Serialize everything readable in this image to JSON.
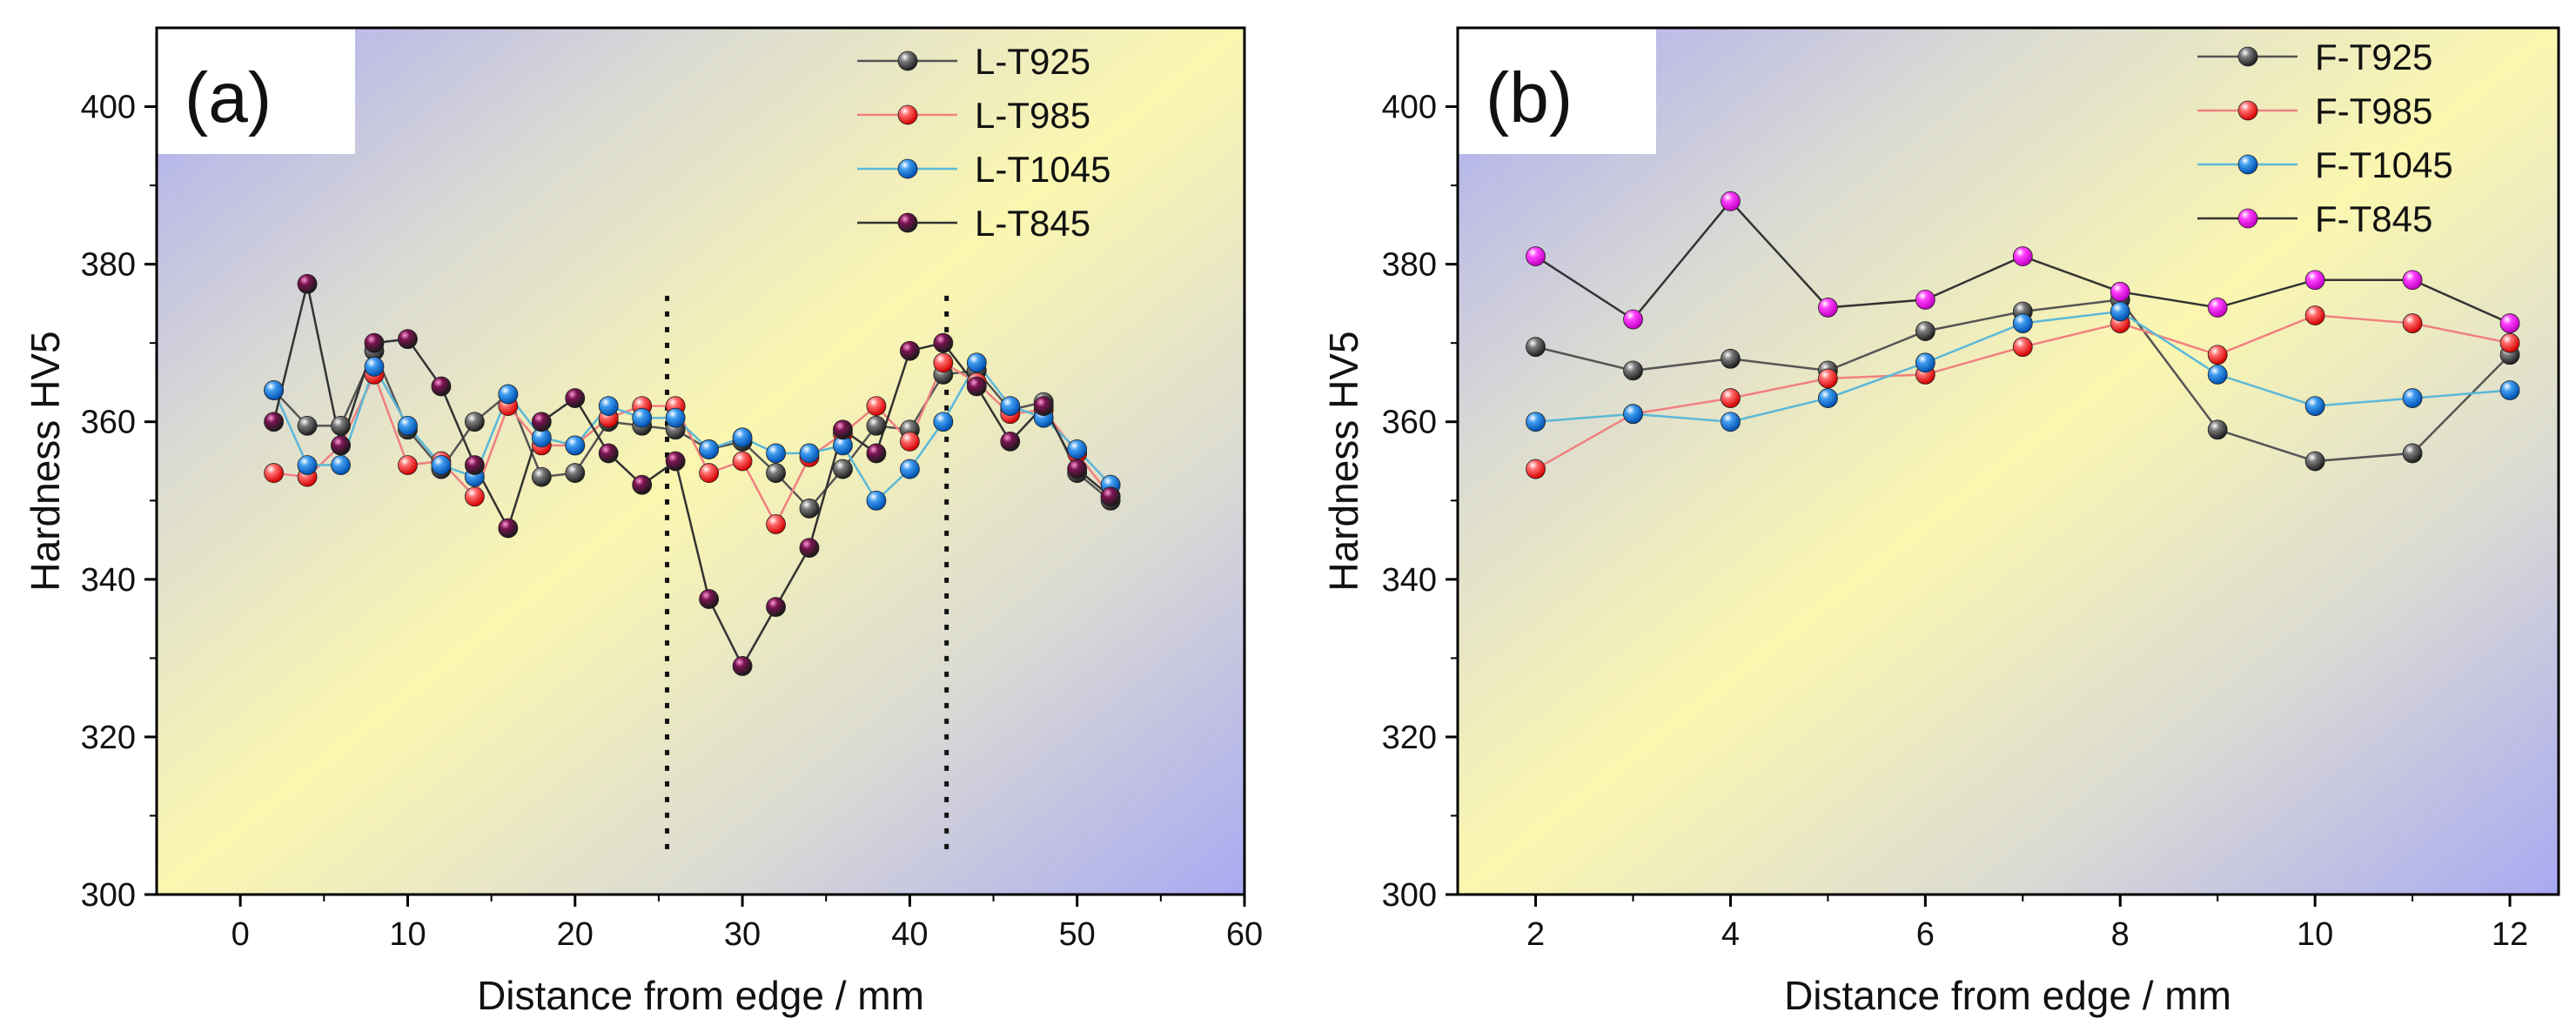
{
  "chart_data": [
    {
      "type": "line",
      "panel_label": "(a)",
      "xlabel": "Distance from edge / mm",
      "ylabel": "Hardness HV5",
      "xlim": [
        -5,
        60
      ],
      "ylim": [
        300,
        410
      ],
      "xticks": [
        "0",
        "10",
        "20",
        "30",
        "40",
        "50",
        "60"
      ],
      "xtick_values": [
        0,
        10,
        20,
        30,
        40,
        50,
        60
      ],
      "yticks": [
        "300",
        "320",
        "340",
        "360",
        "380",
        "400"
      ],
      "ytick_values": [
        300,
        320,
        340,
        360,
        380,
        400
      ],
      "legend_position": "top-right",
      "dotted_verticals": [
        25.5,
        42.2
      ],
      "x": [
        2,
        4,
        6,
        8,
        10,
        12,
        14,
        16,
        18,
        20,
        22,
        24,
        26,
        28,
        30,
        32,
        34,
        36,
        38,
        40,
        42,
        44,
        46,
        48,
        50,
        52
      ],
      "series": [
        {
          "name": "L-T925",
          "color": "#4a4a4a",
          "line_color": "#555555",
          "values": [
            364,
            359.5,
            359.5,
            369,
            359,
            354,
            360,
            363.5,
            353,
            353.5,
            360,
            359.5,
            359,
            356.5,
            357.5,
            353.5,
            349,
            354,
            359.5,
            359,
            366,
            366.5,
            361.5,
            362.5,
            353.5,
            350
          ]
        },
        {
          "name": "L-T985",
          "color": "#ff3b3b",
          "line_color": "#f08080",
          "values": [
            353.5,
            353,
            357,
            366,
            354.5,
            355,
            350.5,
            362,
            357,
            357,
            360.5,
            362,
            362,
            353.5,
            355,
            347,
            355.5,
            358.5,
            362,
            357.5,
            367.5,
            365,
            361,
            361.5,
            356,
            350.5
          ]
        },
        {
          "name": "L-T1045",
          "color": "#1a7fe0",
          "line_color": "#5bb8d8",
          "values": [
            364,
            354.5,
            354.5,
            367,
            359.5,
            354.5,
            353,
            363.5,
            358,
            357,
            362,
            360.5,
            360.5,
            356.5,
            358,
            356,
            356,
            357,
            350,
            354,
            360,
            367.5,
            362,
            360.5,
            356.5,
            352
          ]
        },
        {
          "name": "L-T845",
          "color": "#7a1450",
          "line_color": "#333333",
          "values": [
            360,
            377.5,
            357,
            370,
            370.5,
            364.5,
            354.5,
            346.5,
            360,
            363,
            356,
            352,
            355,
            337.5,
            329,
            336.5,
            344,
            359,
            356,
            369,
            370,
            364.5,
            357.5,
            362,
            354,
            350.5
          ]
        }
      ]
    },
    {
      "type": "line",
      "panel_label": "(b)",
      "xlabel": "Distance from edge / mm",
      "ylabel": "Hardness HV5",
      "xlim": [
        1.2,
        12.5
      ],
      "ylim": [
        300,
        410
      ],
      "xticks": [
        "2",
        "4",
        "6",
        "8",
        "10",
        "12"
      ],
      "xtick_values": [
        2,
        4,
        6,
        8,
        10,
        12
      ],
      "yticks": [
        "300",
        "320",
        "340",
        "360",
        "380",
        "400"
      ],
      "ytick_values": [
        300,
        320,
        340,
        360,
        380,
        400
      ],
      "legend_position": "top-right",
      "x": [
        2,
        3,
        4,
        5,
        6,
        7,
        8,
        9,
        10,
        11,
        12
      ],
      "series": [
        {
          "name": "F-T925",
          "color": "#4a4a4a",
          "line_color": "#555555",
          "values": [
            369.5,
            366.5,
            368,
            366.5,
            371.5,
            374,
            375.5,
            359,
            355,
            356,
            368.5
          ]
        },
        {
          "name": "F-T985",
          "color": "#ff3b3b",
          "line_color": "#f08080",
          "values": [
            354,
            361,
            363,
            365.5,
            366,
            369.5,
            372.5,
            368.5,
            373.5,
            372.5,
            370
          ]
        },
        {
          "name": "F-T1045",
          "color": "#1a7fe0",
          "line_color": "#5bb8d8",
          "values": [
            360,
            361,
            360,
            363,
            367.5,
            372.5,
            374,
            366,
            362,
            363,
            364
          ]
        },
        {
          "name": "F-T845",
          "color": "#ee10ee",
          "line_color": "#333333",
          "values": [
            381,
            373,
            388,
            374.5,
            375.5,
            381,
            376.5,
            374.5,
            378,
            378,
            372.5
          ]
        }
      ]
    }
  ]
}
